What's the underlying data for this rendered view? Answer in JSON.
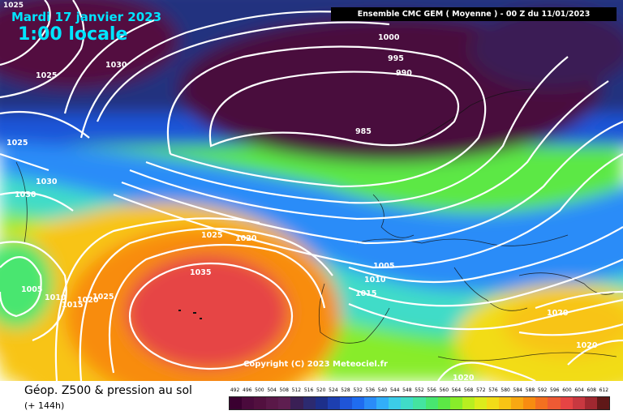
{
  "map": {
    "date": "Mardi 17 janvier 2023",
    "local_time": "1:00 locale",
    "model_header": "Ensemble CMC GEM  ( Moyenne )  -  00 Z du 11/01/2023",
    "copyright": "Copyright (C) 2023 Meteociel.fr",
    "corner_label": "1025",
    "isobar_labels": [
      "1000",
      "995",
      "990",
      "985",
      "1030",
      "1025",
      "1025",
      "1030",
      "1030",
      "1025",
      "1020",
      "1035",
      "1005",
      "1010",
      "1015",
      "1005",
      "1010",
      "1015",
      "1020",
      "1025",
      "1020",
      "1020",
      "1020"
    ]
  },
  "legend": {
    "title": "Géop. Z500 & pression au sol",
    "subtitle": "(+ 144h)",
    "scale_values": [
      "492",
      "496",
      "500",
      "504",
      "508",
      "512",
      "516",
      "520",
      "524",
      "528",
      "532",
      "536",
      "540",
      "544",
      "548",
      "552",
      "556",
      "560",
      "564",
      "568",
      "572",
      "576",
      "580",
      "584",
      "588",
      "592",
      "596",
      "600",
      "604",
      "608",
      "612"
    ],
    "scale_colors": [
      "#3a0030",
      "#4a0a3c",
      "#52103f",
      "#5a1848",
      "#5e1e50",
      "#3a1f55",
      "#2c2a70",
      "#1d2f8a",
      "#1d3fb0",
      "#1f55d8",
      "#1f6cf0",
      "#2a8cf8",
      "#32aef8",
      "#3ccce8",
      "#40dcc8",
      "#44e4a0",
      "#48e670",
      "#5ce845",
      "#88ec2a",
      "#b8ee20",
      "#dcec1c",
      "#f2dc18",
      "#f8c414",
      "#f8a812",
      "#f88c10",
      "#f47020",
      "#ee5a34",
      "#e64444",
      "#c83840",
      "#a02830",
      "#601818"
    ]
  }
}
